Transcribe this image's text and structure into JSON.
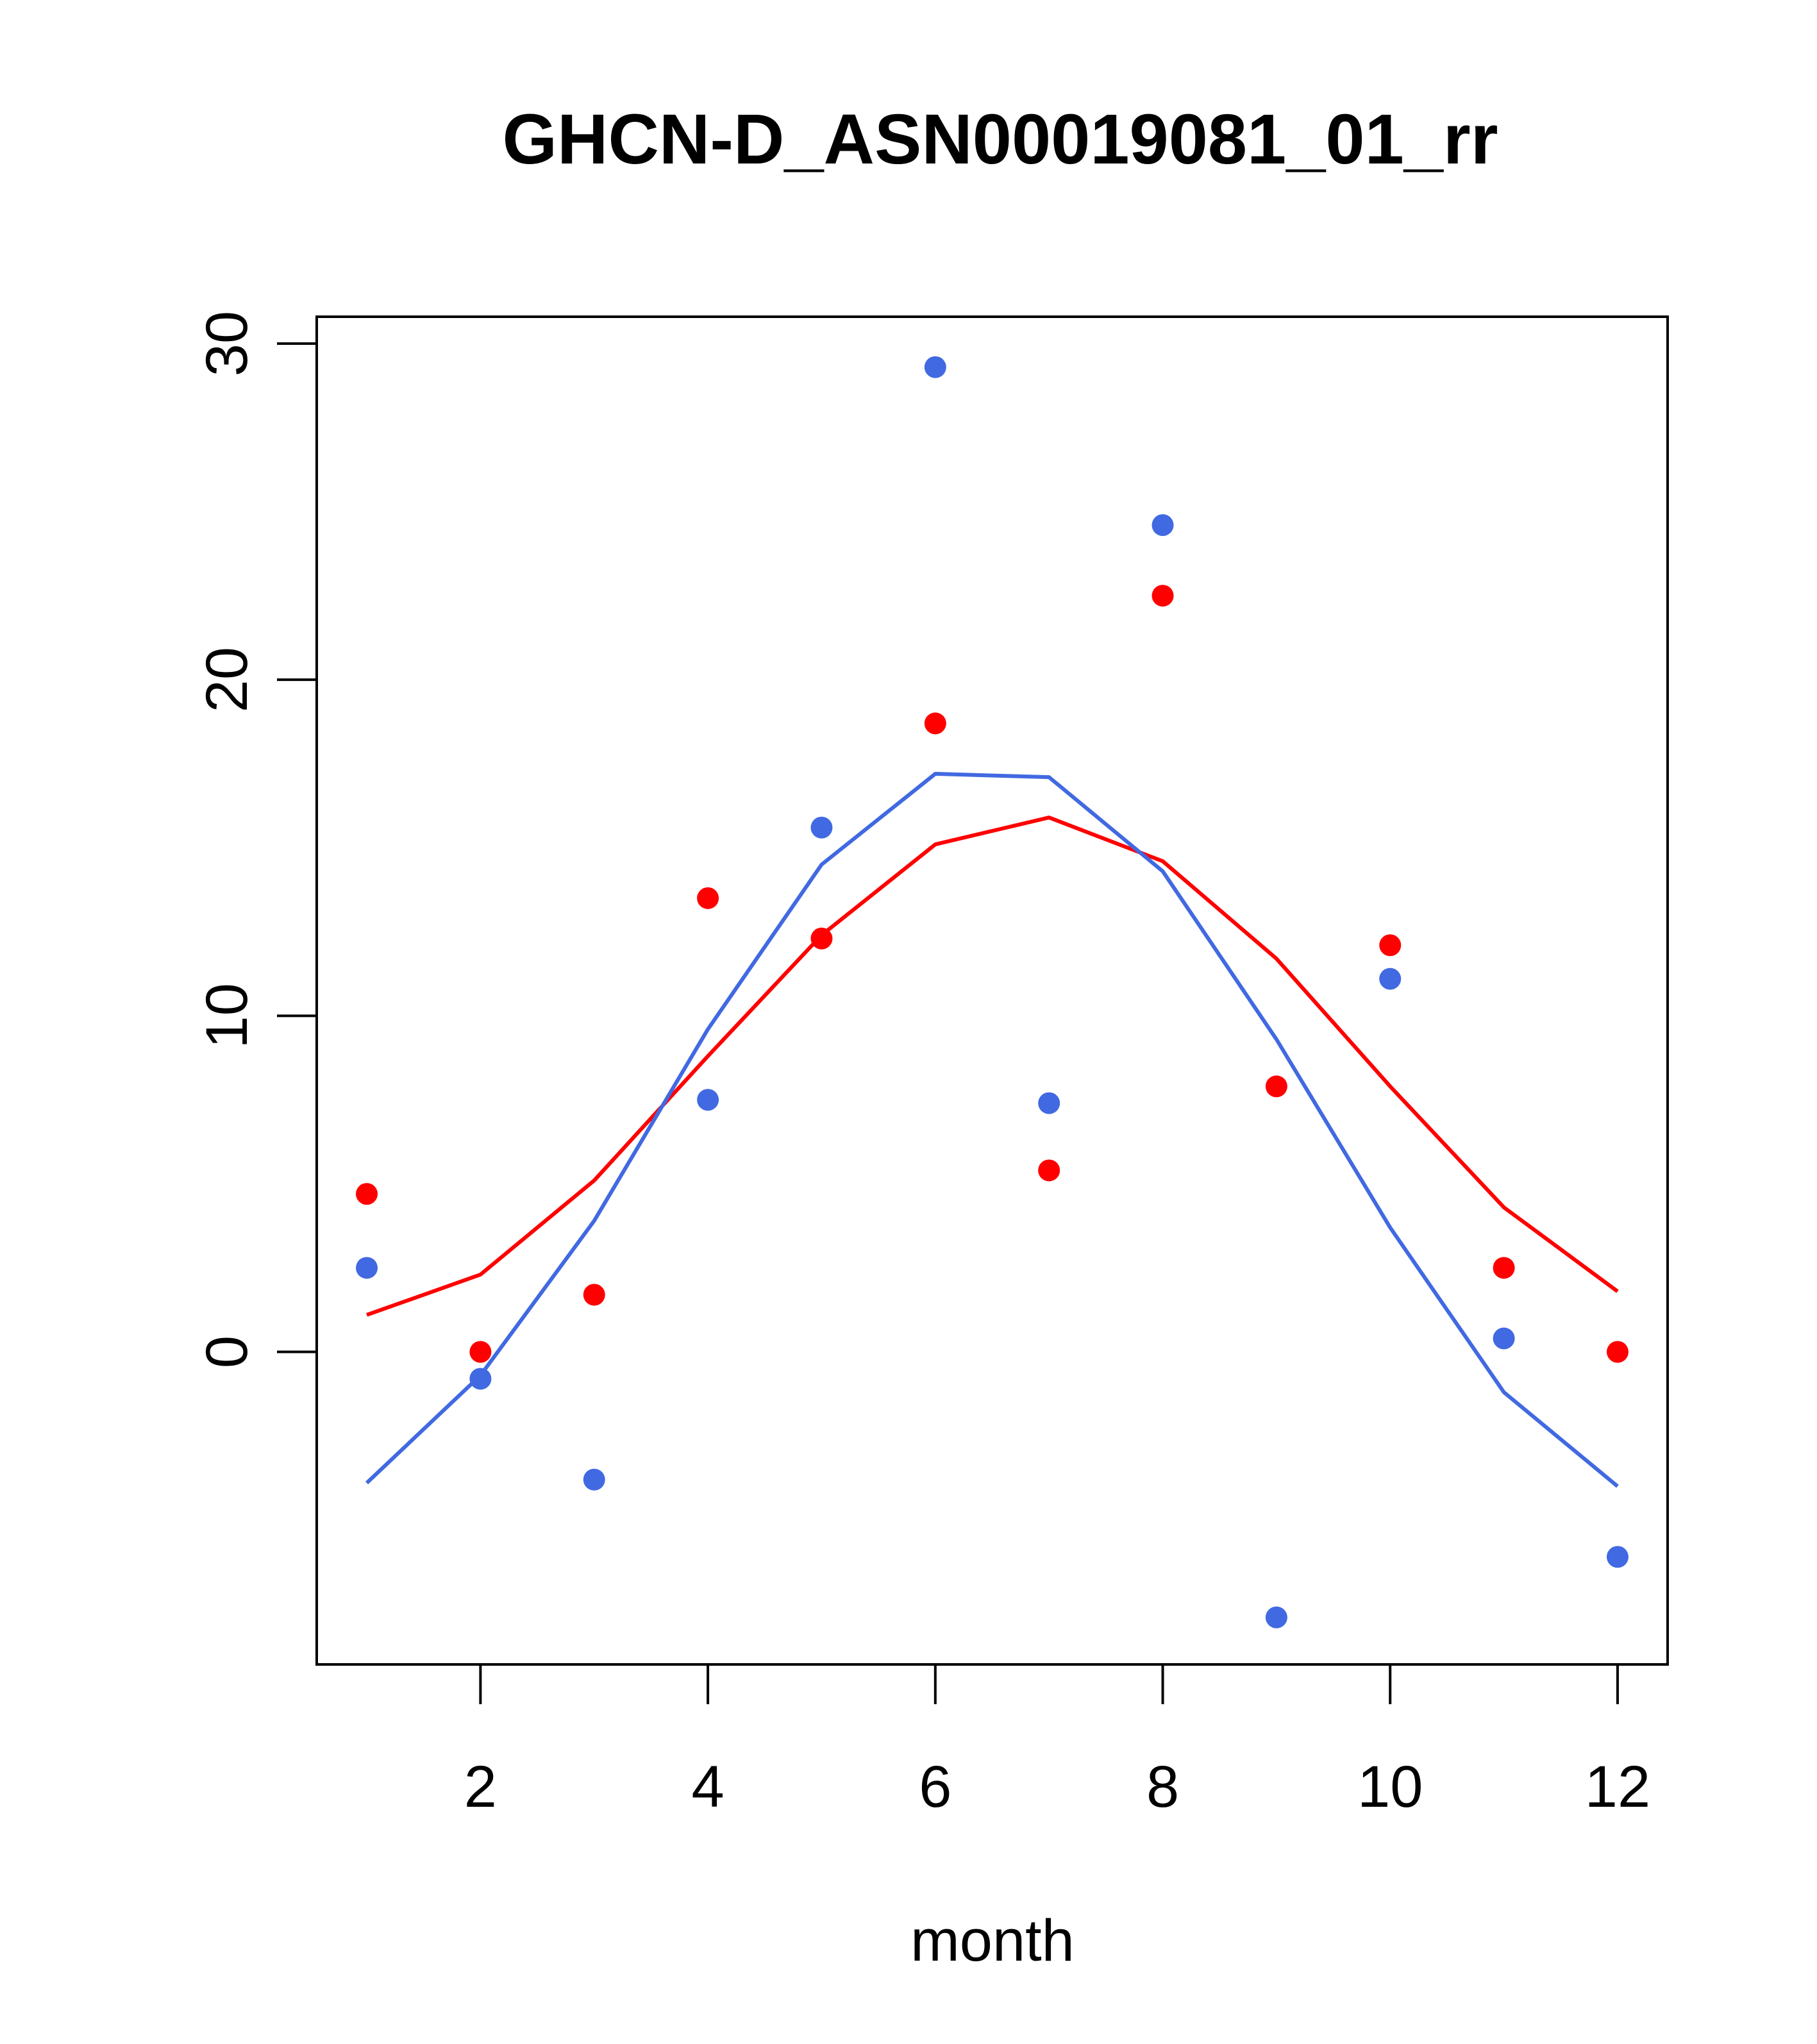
{
  "chart_data": {
    "type": "scatter",
    "title": "GHCN-D_ASN00019081_01_rr",
    "xlabel": "month",
    "ylabel": "",
    "xlim": [
      0.56,
      12.44
    ],
    "ylim": [
      -9.3,
      30.8
    ],
    "xticks": [
      2,
      4,
      6,
      8,
      10,
      12
    ],
    "yticks": [
      0,
      10,
      20,
      30
    ],
    "grid": false,
    "legend": "none",
    "x": [
      1,
      2,
      3,
      4,
      5,
      6,
      7,
      8,
      9,
      10,
      11,
      12
    ],
    "series": [
      {
        "color": "#FF0000",
        "points": [
          4.7,
          0.0,
          1.7,
          13.5,
          12.3,
          18.7,
          5.4,
          22.5,
          7.9,
          12.1,
          2.5,
          0.0
        ],
        "line": [
          1.1,
          2.3,
          5.1,
          8.8,
          12.4,
          15.1,
          15.9,
          14.6,
          11.7,
          7.9,
          4.3,
          1.8
        ]
      },
      {
        "color": "#4169E1",
        "points": [
          2.5,
          -0.8,
          -3.8,
          7.5,
          15.6,
          29.3,
          7.4,
          24.6,
          -7.9,
          11.1,
          0.4,
          -6.1
        ],
        "line": [
          -3.9,
          -0.7,
          3.9,
          9.6,
          14.5,
          17.2,
          17.1,
          14.3,
          9.3,
          3.7,
          -1.2,
          -4.0
        ]
      }
    ]
  }
}
